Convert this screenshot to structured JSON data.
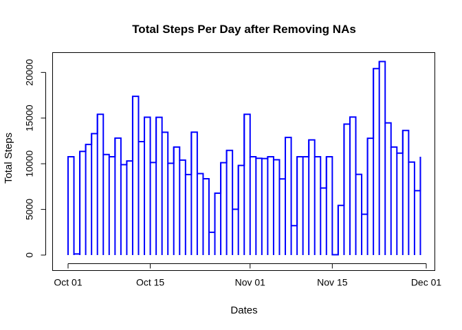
{
  "chart_data": {
    "type": "line",
    "line_style": "step",
    "title": "Total Steps Per Day after Removing NAs",
    "xlabel": "Dates",
    "ylabel": "Total Steps",
    "x_start": "2012-10-01",
    "x_end": "2012-11-30",
    "xlim": [
      "2012-10-01",
      "2012-12-01"
    ],
    "ylim": [
      0,
      21194
    ],
    "x_ticks": [
      {
        "date": "2012-10-01",
        "label": "Oct 01"
      },
      {
        "date": "2012-10-15",
        "label": "Oct 15"
      },
      {
        "date": "2012-11-01",
        "label": "Nov 01"
      },
      {
        "date": "2012-11-15",
        "label": "Nov 15"
      },
      {
        "date": "2012-12-01",
        "label": "Dec 01"
      }
    ],
    "y_ticks": [
      0,
      5000,
      10000,
      15000,
      20000
    ],
    "grid": false,
    "series": [
      {
        "color": "#0000FF",
        "values": [
          10766,
          126,
          11352,
          12116,
          13294,
          15420,
          11015,
          10766,
          12811,
          9900,
          10304,
          17382,
          12426,
          15098,
          10139,
          15084,
          13452,
          10056,
          11829,
          10395,
          8821,
          13460,
          8918,
          8355,
          2492,
          6778,
          10119,
          11458,
          5018,
          9819,
          15414,
          10766,
          10600,
          10571,
          10766,
          10439,
          8334,
          12883,
          3219,
          10766,
          10766,
          12608,
          10765,
          7336,
          10766,
          41,
          5441,
          14339,
          15110,
          8841,
          4472,
          12787,
          20427,
          21194,
          14478,
          11834,
          11162,
          13646,
          10183,
          7047,
          10766
        ]
      }
    ]
  }
}
